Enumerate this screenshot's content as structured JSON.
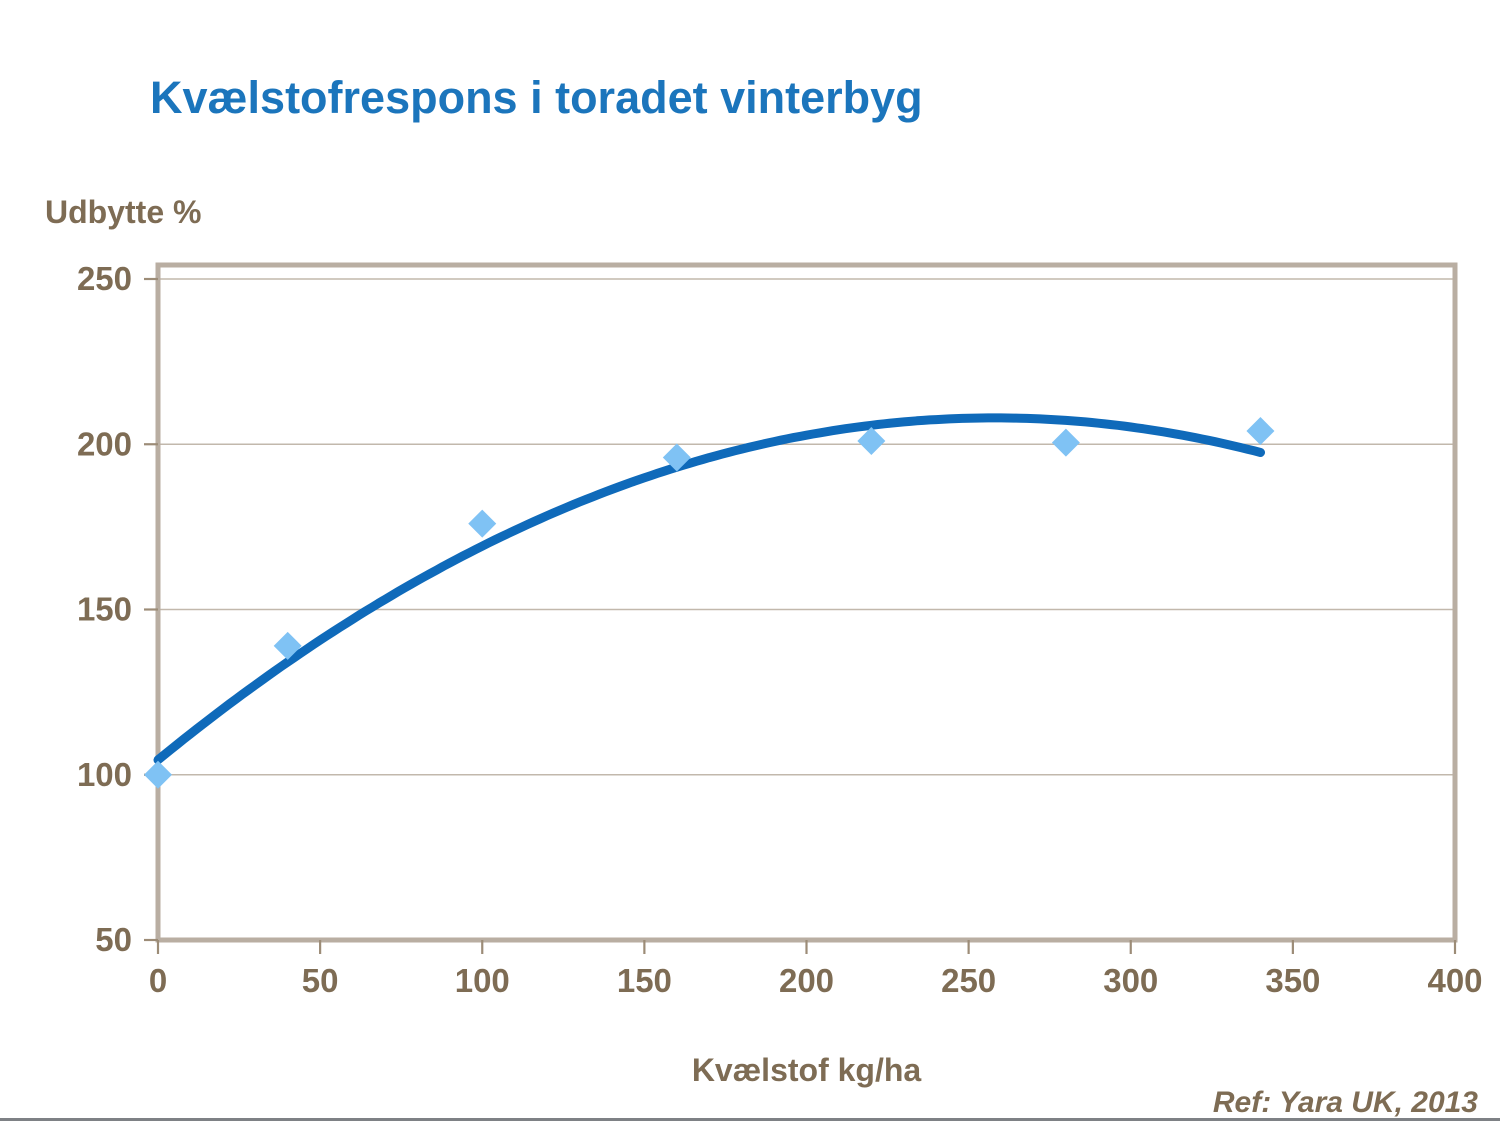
{
  "page": {
    "title": "Kvælstofrespons i toradet vinterbyg",
    "ref": "Ref: Yara UK, 2013"
  },
  "colors": {
    "title_blue": "#1B75BC",
    "curve_blue": "#0F6ABA",
    "point_fill": "#7FC2F4",
    "axis_border": "#B9AEA2",
    "gridline": "#C2B8AC",
    "tick_mark": "#9C8C77",
    "text_brown": "#7E6C54",
    "bottom_rule_gray": "#7E8185"
  },
  "chart_data": {
    "type": "scatter",
    "title": "Kvælstofrespons i toradet vinterbyg",
    "xlabel": "Kvælstof kg/ha",
    "ylabel": "Udbytte %",
    "xlim": [
      0,
      400
    ],
    "ylim": [
      50,
      250
    ],
    "xticks": [
      0,
      50,
      100,
      150,
      200,
      250,
      300,
      350,
      400
    ],
    "yticks": [
      50,
      100,
      150,
      200,
      250
    ],
    "grid": "horizontal",
    "legend": "none",
    "series": [
      {
        "role": "points",
        "marker": "diamond",
        "points": [
          [
            0,
            100
          ],
          [
            40,
            139
          ],
          [
            100,
            176
          ],
          [
            160,
            196
          ],
          [
            220,
            201
          ],
          [
            280,
            200.5
          ],
          [
            340,
            204
          ]
        ]
      },
      {
        "role": "trendline",
        "fit": "quadratic",
        "coefficients": {
          "a": -0.0015552,
          "b": 0.8023,
          "c": 104.5
        },
        "x_domain": [
          0,
          341
        ]
      }
    ]
  }
}
